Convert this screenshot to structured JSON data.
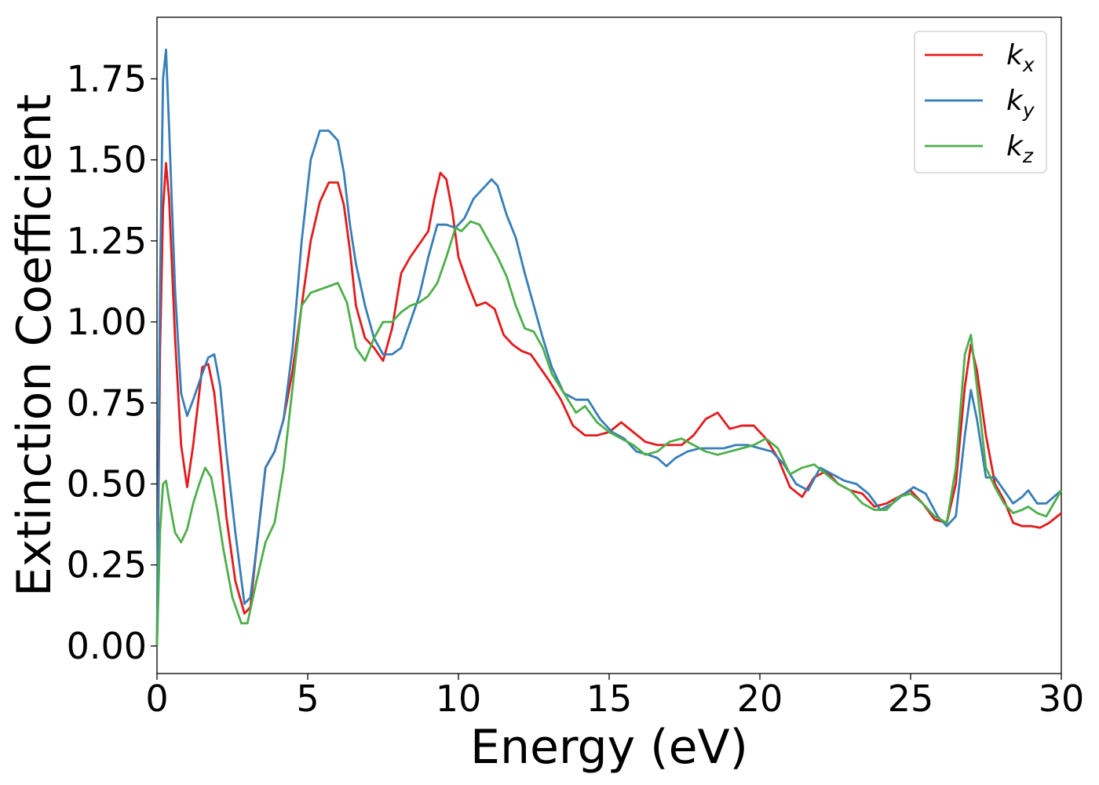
{
  "chart_data": {
    "type": "line",
    "xlabel": "Energy (eV)",
    "ylabel": "Extinction Coefficient",
    "xlim": [
      0,
      30
    ],
    "ylim": [
      -0.085,
      1.94
    ],
    "xticks": [
      0,
      5,
      10,
      15,
      20,
      25,
      30
    ],
    "xtick_labels": [
      "0",
      "5",
      "10",
      "15",
      "20",
      "25",
      "30"
    ],
    "yticks": [
      0.0,
      0.25,
      0.5,
      0.75,
      1.0,
      1.25,
      1.5,
      1.75
    ],
    "ytick_labels": [
      "0.00",
      "0.25",
      "0.50",
      "0.75",
      "1.00",
      "1.25",
      "1.50",
      "1.75"
    ],
    "grid": false,
    "legend_position": "top-right",
    "series": [
      {
        "name": "k",
        "subscript": "x",
        "color": "#e41a1c",
        "x": [
          0,
          0.1,
          0.2,
          0.3,
          0.4,
          0.6,
          0.8,
          1.0,
          1.2,
          1.5,
          1.7,
          1.9,
          2.1,
          2.3,
          2.6,
          2.9,
          3.1,
          3.3,
          3.6,
          3.9,
          4.2,
          4.5,
          4.8,
          5.1,
          5.4,
          5.7,
          6.0,
          6.2,
          6.4,
          6.6,
          6.9,
          7.2,
          7.5,
          7.8,
          8.1,
          8.4,
          8.7,
          9.0,
          9.2,
          9.4,
          9.6,
          9.8,
          10.0,
          10.3,
          10.6,
          10.9,
          11.2,
          11.5,
          11.8,
          12.1,
          12.4,
          12.7,
          13.0,
          13.4,
          13.8,
          14.2,
          14.6,
          15.0,
          15.4,
          15.8,
          16.2,
          16.6,
          17.0,
          17.4,
          17.8,
          18.2,
          18.6,
          19.0,
          19.4,
          19.8,
          20.2,
          20.6,
          21.0,
          21.4,
          21.8,
          22.2,
          22.6,
          23.0,
          23.4,
          23.8,
          24.2,
          24.6,
          25.0,
          25.4,
          25.8,
          26.2,
          26.5,
          26.8,
          27.0,
          27.2,
          27.5,
          27.8,
          28.1,
          28.4,
          28.7,
          29.0,
          29.3,
          29.6,
          30.0
        ],
        "y": [
          0.0,
          0.9,
          1.35,
          1.49,
          1.38,
          0.95,
          0.62,
          0.49,
          0.62,
          0.86,
          0.87,
          0.78,
          0.6,
          0.4,
          0.2,
          0.1,
          0.12,
          0.3,
          0.55,
          0.6,
          0.7,
          0.85,
          1.05,
          1.25,
          1.37,
          1.43,
          1.43,
          1.36,
          1.22,
          1.05,
          0.95,
          0.92,
          0.88,
          0.98,
          1.15,
          1.2,
          1.24,
          1.28,
          1.38,
          1.46,
          1.44,
          1.34,
          1.2,
          1.12,
          1.05,
          1.06,
          1.04,
          0.96,
          0.93,
          0.91,
          0.9,
          0.86,
          0.82,
          0.76,
          0.68,
          0.65,
          0.65,
          0.66,
          0.69,
          0.66,
          0.63,
          0.62,
          0.62,
          0.62,
          0.65,
          0.7,
          0.72,
          0.67,
          0.68,
          0.68,
          0.64,
          0.58,
          0.49,
          0.46,
          0.52,
          0.54,
          0.5,
          0.48,
          0.47,
          0.43,
          0.44,
          0.46,
          0.48,
          0.44,
          0.39,
          0.38,
          0.5,
          0.8,
          0.93,
          0.85,
          0.65,
          0.5,
          0.45,
          0.38,
          0.37,
          0.37,
          0.365,
          0.38,
          0.41
        ]
      },
      {
        "name": "k",
        "subscript": "y",
        "color": "#377eb8",
        "x": [
          0,
          0.1,
          0.2,
          0.3,
          0.4,
          0.6,
          0.8,
          1.0,
          1.2,
          1.5,
          1.7,
          1.9,
          2.1,
          2.3,
          2.6,
          2.9,
          3.1,
          3.3,
          3.6,
          3.9,
          4.2,
          4.5,
          4.8,
          5.1,
          5.4,
          5.7,
          6.0,
          6.2,
          6.4,
          6.6,
          6.9,
          7.2,
          7.5,
          7.8,
          8.1,
          8.4,
          8.7,
          9.0,
          9.3,
          9.6,
          9.9,
          10.2,
          10.5,
          10.8,
          11.1,
          11.3,
          11.6,
          11.9,
          12.2,
          12.5,
          12.8,
          13.1,
          13.5,
          13.9,
          14.3,
          14.7,
          15.1,
          15.5,
          15.9,
          16.3,
          16.6,
          16.9,
          17.2,
          17.6,
          18.0,
          18.4,
          18.8,
          19.2,
          19.6,
          20.0,
          20.4,
          20.8,
          21.2,
          21.6,
          22.0,
          22.4,
          22.8,
          23.2,
          23.6,
          24.0,
          24.4,
          24.8,
          25.1,
          25.5,
          25.9,
          26.2,
          26.5,
          26.8,
          27.0,
          27.2,
          27.5,
          27.8,
          28.1,
          28.4,
          28.7,
          28.9,
          29.2,
          29.5,
          30.0
        ],
        "y": [
          0.0,
          1.1,
          1.75,
          1.84,
          1.6,
          1.1,
          0.78,
          0.71,
          0.76,
          0.84,
          0.89,
          0.9,
          0.8,
          0.6,
          0.35,
          0.13,
          0.15,
          0.3,
          0.55,
          0.6,
          0.7,
          0.92,
          1.25,
          1.5,
          1.59,
          1.59,
          1.56,
          1.46,
          1.3,
          1.18,
          1.05,
          0.95,
          0.9,
          0.9,
          0.92,
          1.0,
          1.08,
          1.2,
          1.3,
          1.3,
          1.29,
          1.32,
          1.38,
          1.41,
          1.44,
          1.42,
          1.33,
          1.26,
          1.15,
          1.05,
          0.95,
          0.86,
          0.78,
          0.76,
          0.76,
          0.7,
          0.66,
          0.64,
          0.6,
          0.59,
          0.58,
          0.555,
          0.58,
          0.6,
          0.61,
          0.61,
          0.61,
          0.62,
          0.62,
          0.61,
          0.6,
          0.56,
          0.5,
          0.48,
          0.55,
          0.53,
          0.51,
          0.5,
          0.47,
          0.42,
          0.44,
          0.47,
          0.49,
          0.47,
          0.4,
          0.37,
          0.4,
          0.65,
          0.79,
          0.7,
          0.52,
          0.52,
          0.48,
          0.44,
          0.46,
          0.48,
          0.44,
          0.44,
          0.48
        ]
      },
      {
        "name": "k",
        "subscript": "z",
        "color": "#4daf4a",
        "x": [
          0,
          0.1,
          0.2,
          0.3,
          0.4,
          0.6,
          0.8,
          1.0,
          1.2,
          1.4,
          1.6,
          1.8,
          2.0,
          2.2,
          2.5,
          2.8,
          3.0,
          3.3,
          3.6,
          3.9,
          4.2,
          4.5,
          4.8,
          5.1,
          5.4,
          5.7,
          6.0,
          6.3,
          6.6,
          6.9,
          7.2,
          7.5,
          7.8,
          8.1,
          8.4,
          8.7,
          9.0,
          9.3,
          9.6,
          9.9,
          10.1,
          10.4,
          10.7,
          11.0,
          11.3,
          11.6,
          11.9,
          12.2,
          12.5,
          12.8,
          13.1,
          13.5,
          13.9,
          14.2,
          14.6,
          15.0,
          15.4,
          15.8,
          16.2,
          16.6,
          17.0,
          17.4,
          17.8,
          18.2,
          18.6,
          19.0,
          19.4,
          19.8,
          20.2,
          20.6,
          21.0,
          21.4,
          21.8,
          22.2,
          22.6,
          23.0,
          23.4,
          23.8,
          24.2,
          24.6,
          25.0,
          25.4,
          25.8,
          26.2,
          26.5,
          26.8,
          27.0,
          27.2,
          27.5,
          27.8,
          28.1,
          28.4,
          28.7,
          28.9,
          29.2,
          29.5,
          30.0
        ],
        "y": [
          0.0,
          0.35,
          0.5,
          0.51,
          0.45,
          0.35,
          0.32,
          0.36,
          0.44,
          0.5,
          0.55,
          0.52,
          0.42,
          0.3,
          0.15,
          0.07,
          0.07,
          0.2,
          0.32,
          0.38,
          0.55,
          0.8,
          1.05,
          1.09,
          1.1,
          1.11,
          1.12,
          1.06,
          0.92,
          0.88,
          0.95,
          1.0,
          1.0,
          1.03,
          1.05,
          1.06,
          1.08,
          1.12,
          1.2,
          1.29,
          1.28,
          1.31,
          1.3,
          1.25,
          1.2,
          1.14,
          1.05,
          0.98,
          0.97,
          0.92,
          0.84,
          0.78,
          0.72,
          0.74,
          0.69,
          0.66,
          0.64,
          0.62,
          0.59,
          0.6,
          0.63,
          0.64,
          0.62,
          0.6,
          0.59,
          0.6,
          0.61,
          0.62,
          0.64,
          0.61,
          0.53,
          0.55,
          0.56,
          0.53,
          0.5,
          0.48,
          0.44,
          0.42,
          0.42,
          0.46,
          0.47,
          0.44,
          0.4,
          0.38,
          0.55,
          0.9,
          0.96,
          0.8,
          0.55,
          0.49,
          0.44,
          0.41,
          0.42,
          0.43,
          0.41,
          0.4,
          0.48
        ]
      }
    ]
  }
}
